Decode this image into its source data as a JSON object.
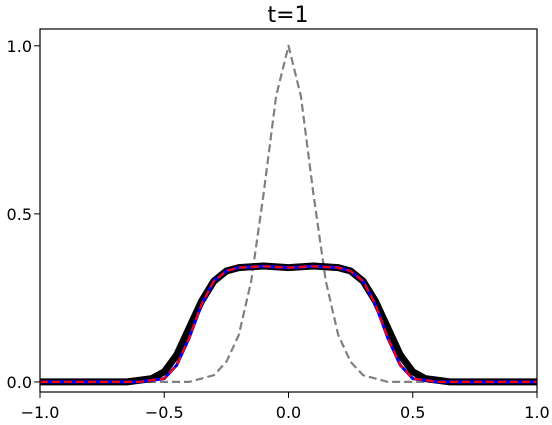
{
  "chart_data": {
    "type": "line",
    "title": "t=1",
    "xlabel": "",
    "ylabel": "",
    "xlim": [
      -1.0,
      1.0
    ],
    "ylim": [
      -0.03,
      1.05
    ],
    "x_ticks": [
      -1.0,
      -0.5,
      0.0,
      0.5,
      1.0
    ],
    "x_tick_labels": [
      "−1.0",
      "−0.5",
      "0.0",
      "0.5",
      "1.0"
    ],
    "y_ticks": [
      0.0,
      0.5,
      1.0
    ],
    "y_tick_labels": [
      "0.0",
      "0.5",
      "1.0"
    ],
    "grid": false,
    "legend": "none",
    "series": [
      {
        "style": "dashed",
        "color": "#808080",
        "x": [
          -1.0,
          -0.5,
          -0.4,
          -0.3,
          -0.25,
          -0.2,
          -0.15,
          -0.1,
          -0.05,
          0.0,
          0.05,
          0.1,
          0.15,
          0.2,
          0.25,
          0.3,
          0.4,
          0.5,
          1.0
        ],
        "y": [
          0.0,
          0.0,
          0.0,
          0.02,
          0.06,
          0.14,
          0.3,
          0.56,
          0.85,
          1.0,
          0.85,
          0.56,
          0.3,
          0.14,
          0.06,
          0.02,
          0.0,
          0.0,
          0.0
        ]
      },
      {
        "style": "solid-thick",
        "color": "#000000",
        "x": [
          -1.0,
          -0.65,
          -0.55,
          -0.5,
          -0.45,
          -0.4,
          -0.35,
          -0.3,
          -0.25,
          -0.2,
          -0.1,
          0.0,
          0.1,
          0.2,
          0.25,
          0.3,
          0.35,
          0.4,
          0.45,
          0.5,
          0.55,
          0.65,
          1.0
        ],
        "y": [
          0.0,
          0.0,
          0.01,
          0.03,
          0.08,
          0.16,
          0.24,
          0.3,
          0.33,
          0.34,
          0.345,
          0.34,
          0.345,
          0.34,
          0.33,
          0.3,
          0.24,
          0.16,
          0.08,
          0.03,
          0.01,
          0.0,
          0.0
        ]
      },
      {
        "style": "solid",
        "color": "#0000ff",
        "x": [
          -1.0,
          -0.6,
          -0.5,
          -0.45,
          -0.4,
          -0.35,
          -0.3,
          -0.25,
          -0.2,
          -0.15,
          -0.1,
          -0.05,
          0.0,
          0.05,
          0.1,
          0.15,
          0.2,
          0.25,
          0.3,
          0.35,
          0.4,
          0.45,
          0.5,
          0.6,
          1.0
        ],
        "y": [
          0.0,
          0.0,
          0.01,
          0.05,
          0.13,
          0.23,
          0.3,
          0.33,
          0.34,
          0.342,
          0.344,
          0.342,
          0.34,
          0.342,
          0.344,
          0.342,
          0.34,
          0.33,
          0.3,
          0.23,
          0.13,
          0.05,
          0.01,
          0.0,
          0.0
        ]
      },
      {
        "style": "dashed",
        "color": "#ff0000",
        "x": [
          -1.0,
          -0.6,
          -0.5,
          -0.45,
          -0.4,
          -0.35,
          -0.3,
          -0.25,
          -0.2,
          -0.15,
          -0.1,
          -0.05,
          0.0,
          0.05,
          0.1,
          0.15,
          0.2,
          0.25,
          0.3,
          0.35,
          0.4,
          0.45,
          0.5,
          0.6,
          1.0
        ],
        "y": [
          0.0,
          0.0,
          0.01,
          0.05,
          0.13,
          0.23,
          0.3,
          0.33,
          0.34,
          0.342,
          0.344,
          0.342,
          0.34,
          0.342,
          0.344,
          0.342,
          0.34,
          0.33,
          0.3,
          0.23,
          0.13,
          0.05,
          0.01,
          0.0,
          0.0
        ]
      }
    ]
  }
}
